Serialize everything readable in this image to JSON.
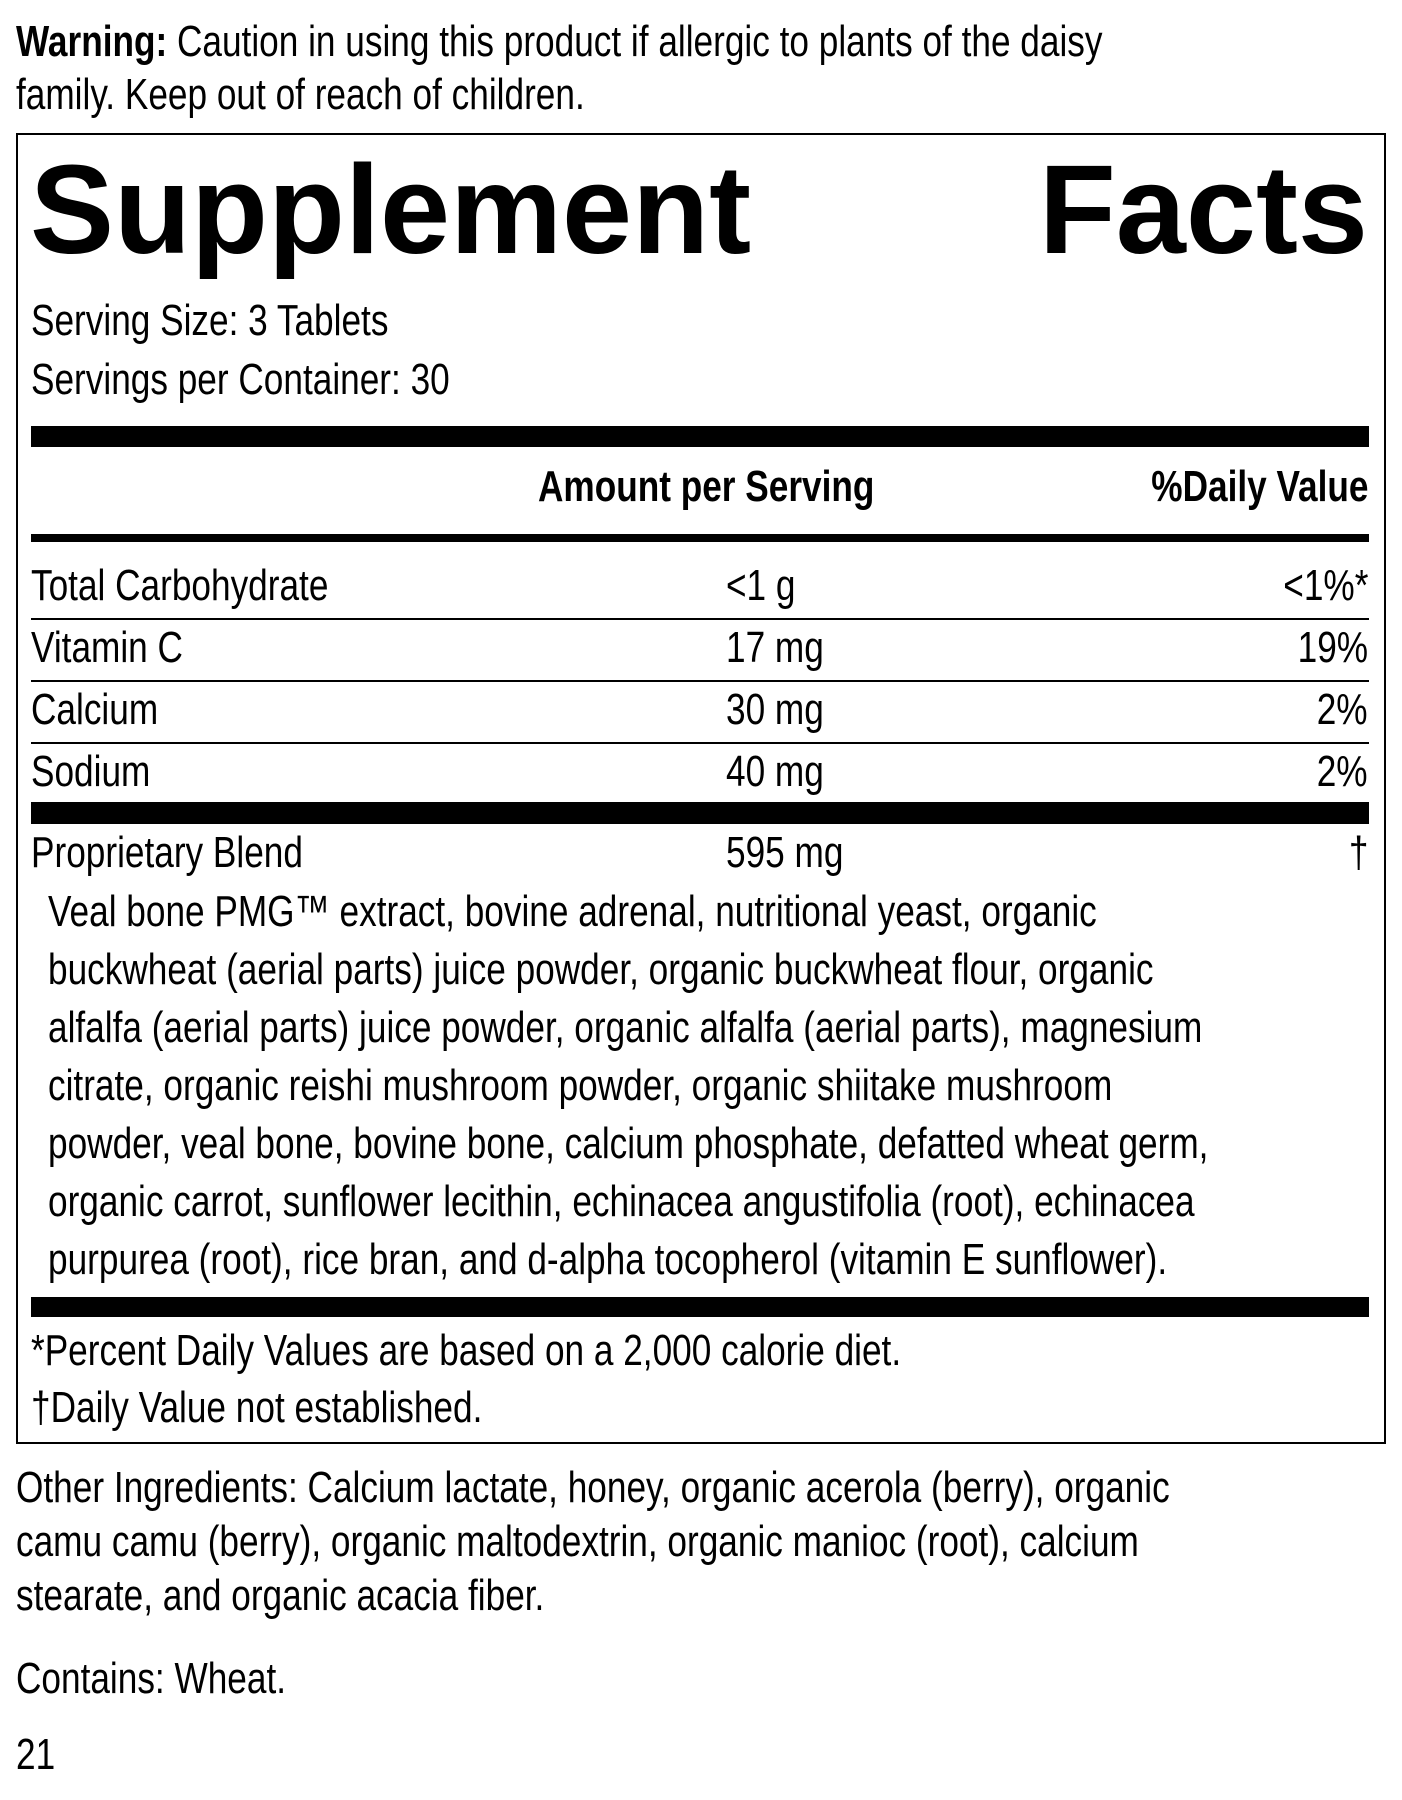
{
  "warning": {
    "label": "Warning:",
    "lines": [
      " Caution in using this product if allergic to plants of the daisy",
      "family. Keep out of reach of children."
    ]
  },
  "panel": {
    "title_left": "Supplement",
    "title_right": "Facts",
    "serving_size": "Serving Size: 3 Tablets",
    "servings_per_container": "Servings per Container: 30",
    "header": {
      "amount": "Amount per Serving",
      "dv": "%Daily Value"
    },
    "rows": [
      {
        "name": "Total Carbohydrate",
        "amount": "<1 g",
        "dv": "<1%*"
      },
      {
        "name": "Vitamin C",
        "amount": "17 mg",
        "dv": "19%"
      },
      {
        "name": "Calcium",
        "amount": "30 mg",
        "dv": "2%"
      },
      {
        "name": "Sodium",
        "amount": "40 mg",
        "dv": "2%"
      }
    ],
    "blend": {
      "name": "Proprietary Blend",
      "amount": "595 mg",
      "dv": "†",
      "ingredients": [
        "Veal bone PMG™ extract, bovine adrenal, nutritional yeast, organic",
        "buckwheat (aerial parts) juice powder, organic buckwheat flour, organic",
        "alfalfa (aerial parts) juice powder, organic alfalfa (aerial parts), magnesium",
        "citrate, organic reishi mushroom powder, organic shiitake mushroom",
        "powder, veal bone, bovine bone, calcium phosphate, defatted wheat germ,",
        "organic carrot, sunflower lecithin, echinacea angustifolia (root), echinacea",
        "purpurea (root), rice bran, and d-alpha tocopherol (vitamin E sunflower)."
      ]
    },
    "footnotes": [
      "*Percent Daily Values are based on a 2,000 calorie diet.",
      "†Daily Value not established."
    ]
  },
  "other_ingredients": [
    "Other Ingredients: Calcium lactate, honey, organic acerola (berry), organic",
    "camu camu (berry), organic maltodextrin, organic manioc (root), calcium",
    "stearate, and organic acacia fiber."
  ],
  "contains": "Contains: Wheat.",
  "page_number": "21"
}
